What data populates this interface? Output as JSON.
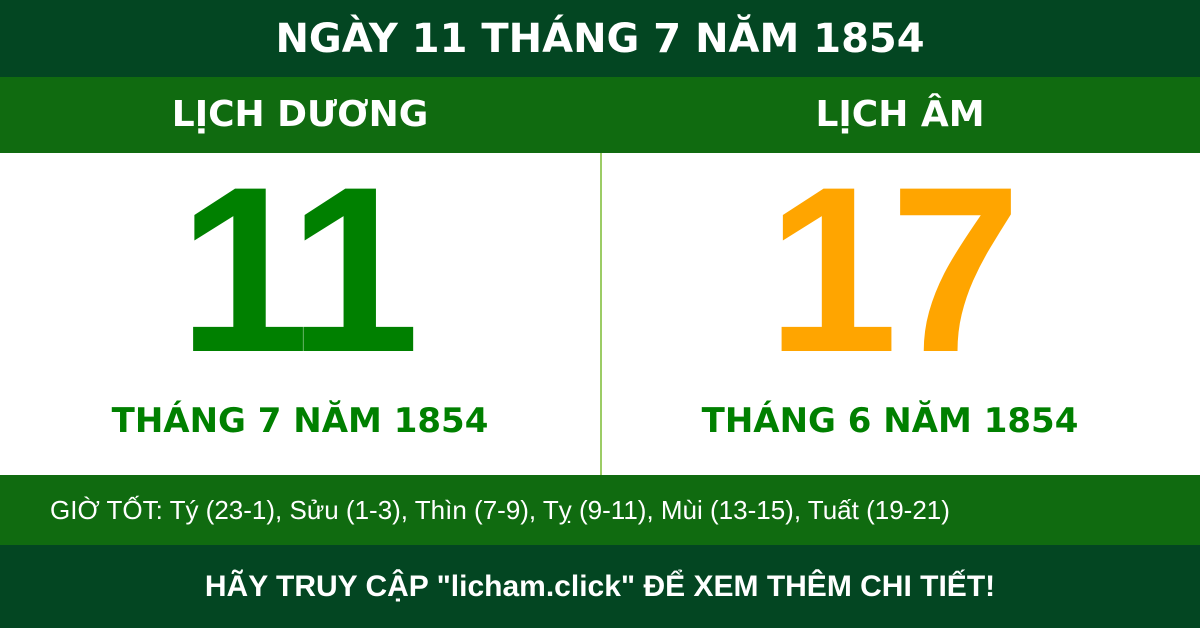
{
  "title": "NGÀY 11 THÁNG 7 NĂM 1854",
  "solar": {
    "heading": "LỊCH DƯƠNG",
    "day": "11",
    "month_year": "THÁNG 7 NĂM 1854",
    "color": "#008000"
  },
  "lunar": {
    "heading": "LỊCH ÂM",
    "day": "17",
    "month_year": "THÁNG 6 NĂM 1854",
    "color": "#FFA500"
  },
  "good_hours": "GIỜ TỐT: Tý (23-1), Sửu (1-3), Thìn (7-9), Tỵ (9-11), Mùi (13-15), Tuất (19-21)",
  "footer": "HÃY TRUY CẬP \"licham.click\" ĐỂ XEM THÊM CHI TIẾT!",
  "colors": {
    "dark_green": "#034622",
    "green": "#106b10"
  }
}
